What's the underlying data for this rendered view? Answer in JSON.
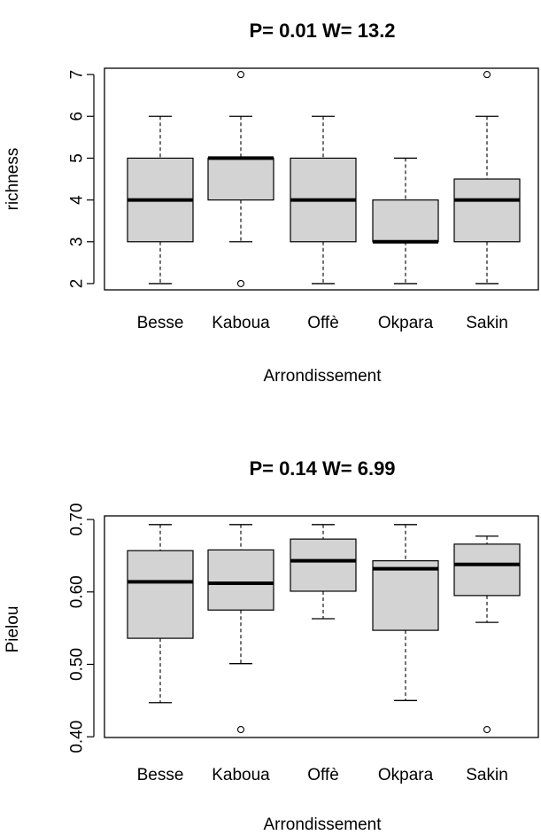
{
  "chart_data": [
    {
      "type": "box",
      "title": "P= 0.01  W= 13.2",
      "xlabel": "Arrondissement",
      "ylabel": "richness",
      "ylim": [
        1.85,
        7.15
      ],
      "yticks": [
        "2",
        "3",
        "4",
        "5",
        "6",
        "7"
      ],
      "ytick_values": [
        2,
        3,
        4,
        5,
        6,
        7
      ],
      "categories": [
        "Besse",
        "Kaboua",
        "Offè",
        "Okpara",
        "Sakin"
      ],
      "boxes": [
        {
          "min": 2,
          "q1": 3,
          "median": 4,
          "q3": 5,
          "max": 6,
          "outliers": []
        },
        {
          "min": 3,
          "q1": 4,
          "median": 5,
          "q3": 5,
          "max": 6,
          "outliers": [
            2,
            7
          ]
        },
        {
          "min": 2,
          "q1": 3,
          "median": 4,
          "q3": 5,
          "max": 6,
          "outliers": []
        },
        {
          "min": 2,
          "q1": 3,
          "median": 3,
          "q3": 4,
          "max": 5,
          "outliers": []
        },
        {
          "min": 2,
          "q1": 3,
          "median": 4,
          "q3": 4.5,
          "max": 6,
          "outliers": [
            7
          ]
        }
      ],
      "box_fill": "#d3d3d3"
    },
    {
      "type": "box",
      "title": "P= 0.14  W= 6.99",
      "xlabel": "Arrondissement",
      "ylabel": "Pielou",
      "ylim": [
        0.399,
        0.705
      ],
      "yticks": [
        "0.40",
        "0.50",
        "0.60",
        "0.70"
      ],
      "ytick_values": [
        0.4,
        0.5,
        0.6,
        0.7
      ],
      "categories": [
        "Besse",
        "Kaboua",
        "Offè",
        "Okpara",
        "Sakin"
      ],
      "boxes": [
        {
          "min": 0.447,
          "q1": 0.536,
          "median": 0.614,
          "q3": 0.657,
          "max": 0.693,
          "outliers": []
        },
        {
          "min": 0.501,
          "q1": 0.575,
          "median": 0.612,
          "q3": 0.658,
          "max": 0.693,
          "outliers": [
            0.41
          ]
        },
        {
          "min": 0.563,
          "q1": 0.601,
          "median": 0.643,
          "q3": 0.673,
          "max": 0.693,
          "outliers": []
        },
        {
          "min": 0.45,
          "q1": 0.547,
          "median": 0.632,
          "q3": 0.643,
          "max": 0.693,
          "outliers": []
        },
        {
          "min": 0.558,
          "q1": 0.595,
          "median": 0.638,
          "q3": 0.666,
          "max": 0.677,
          "outliers": [
            0.41
          ]
        }
      ],
      "box_fill": "#d3d3d3"
    }
  ]
}
